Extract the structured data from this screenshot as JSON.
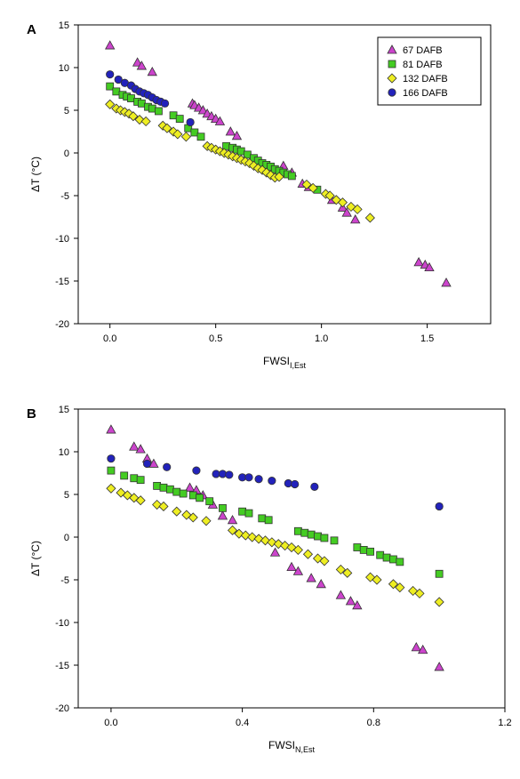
{
  "chart_data": [
    {
      "panel": "A",
      "type": "scatter",
      "xlabel": {
        "base": "FWSI",
        "sub": "I,Est"
      },
      "ylabel": "ΔT (°C)",
      "xlim": [
        -0.15,
        1.8
      ],
      "ylim": [
        -20,
        15
      ],
      "xticks": [
        "0.0",
        "0.5",
        "1.0",
        "1.5"
      ],
      "xtick_values": [
        0,
        0.5,
        1.0,
        1.5
      ],
      "yticks": [
        "15",
        "10",
        "5",
        "0",
        "-5",
        "-10",
        "-15",
        "-20"
      ],
      "ytick_values": [
        15,
        10,
        5,
        0,
        -5,
        -10,
        -15,
        -20
      ],
      "legend_position": "top-right",
      "series": [
        {
          "name": "67 DAFB",
          "marker": "triangle",
          "color": "#cc44cc",
          "points": [
            [
              0.0,
              12.6
            ],
            [
              0.13,
              10.6
            ],
            [
              0.15,
              10.2
            ],
            [
              0.2,
              9.5
            ],
            [
              0.39,
              5.8
            ],
            [
              0.4,
              5.6
            ],
            [
              0.42,
              5.3
            ],
            [
              0.44,
              5.0
            ],
            [
              0.46,
              4.6
            ],
            [
              0.48,
              4.3
            ],
            [
              0.5,
              4.0
            ],
            [
              0.52,
              3.7
            ],
            [
              0.57,
              2.5
            ],
            [
              0.6,
              2.0
            ],
            [
              0.82,
              -1.5
            ],
            [
              0.86,
              -2.3
            ],
            [
              0.91,
              -3.6
            ],
            [
              0.94,
              -4.0
            ],
            [
              1.05,
              -5.5
            ],
            [
              1.1,
              -6.4
            ],
            [
              1.12,
              -7.0
            ],
            [
              1.16,
              -7.8
            ],
            [
              1.46,
              -12.8
            ],
            [
              1.49,
              -13.1
            ],
            [
              1.51,
              -13.4
            ],
            [
              1.59,
              -15.2
            ]
          ]
        },
        {
          "name": "81 DAFB",
          "marker": "square",
          "color": "#44cc22",
          "points": [
            [
              0.0,
              7.8
            ],
            [
              0.03,
              7.2
            ],
            [
              0.06,
              6.8
            ],
            [
              0.08,
              6.6
            ],
            [
              0.1,
              6.4
            ],
            [
              0.13,
              6.0
            ],
            [
              0.15,
              5.8
            ],
            [
              0.18,
              5.4
            ],
            [
              0.2,
              5.2
            ],
            [
              0.23,
              4.9
            ],
            [
              0.3,
              4.4
            ],
            [
              0.33,
              4.0
            ],
            [
              0.37,
              2.9
            ],
            [
              0.4,
              2.4
            ],
            [
              0.43,
              1.9
            ],
            [
              0.55,
              0.8
            ],
            [
              0.58,
              0.6
            ],
            [
              0.6,
              0.4
            ],
            [
              0.62,
              0.2
            ],
            [
              0.65,
              -0.2
            ],
            [
              0.68,
              -0.6
            ],
            [
              0.7,
              -0.9
            ],
            [
              0.72,
              -1.2
            ],
            [
              0.74,
              -1.4
            ],
            [
              0.76,
              -1.6
            ],
            [
              0.78,
              -1.9
            ],
            [
              0.8,
              -2.1
            ],
            [
              0.82,
              -2.3
            ],
            [
              0.84,
              -2.5
            ],
            [
              0.86,
              -2.7
            ],
            [
              0.98,
              -4.3
            ]
          ]
        },
        {
          "name": "132 DAFB",
          "marker": "diamond",
          "color": "#eeee22",
          "points": [
            [
              0.0,
              5.7
            ],
            [
              0.03,
              5.2
            ],
            [
              0.05,
              5.0
            ],
            [
              0.07,
              4.8
            ],
            [
              0.09,
              4.6
            ],
            [
              0.11,
              4.3
            ],
            [
              0.14,
              3.9
            ],
            [
              0.17,
              3.7
            ],
            [
              0.25,
              3.2
            ],
            [
              0.27,
              2.9
            ],
            [
              0.3,
              2.5
            ],
            [
              0.32,
              2.2
            ],
            [
              0.36,
              1.9
            ],
            [
              0.46,
              0.8
            ],
            [
              0.48,
              0.6
            ],
            [
              0.5,
              0.4
            ],
            [
              0.52,
              0.2
            ],
            [
              0.54,
              0.0
            ],
            [
              0.56,
              -0.2
            ],
            [
              0.58,
              -0.4
            ],
            [
              0.6,
              -0.6
            ],
            [
              0.62,
              -0.8
            ],
            [
              0.64,
              -1.0
            ],
            [
              0.66,
              -1.2
            ],
            [
              0.68,
              -1.5
            ],
            [
              0.7,
              -1.8
            ],
            [
              0.72,
              -2.0
            ],
            [
              0.74,
              -2.3
            ],
            [
              0.76,
              -2.6
            ],
            [
              0.78,
              -2.9
            ],
            [
              0.8,
              -2.8
            ],
            [
              0.93,
              -3.7
            ],
            [
              0.96,
              -4.1
            ],
            [
              1.02,
              -4.8
            ],
            [
              1.04,
              -5.0
            ],
            [
              1.07,
              -5.5
            ],
            [
              1.1,
              -5.8
            ],
            [
              1.14,
              -6.3
            ],
            [
              1.17,
              -6.6
            ],
            [
              1.23,
              -7.6
            ]
          ]
        },
        {
          "name": "166 DAFB",
          "marker": "circle",
          "color": "#2222bb",
          "points": [
            [
              0.0,
              9.2
            ],
            [
              0.04,
              8.6
            ],
            [
              0.07,
              8.2
            ],
            [
              0.1,
              7.9
            ],
            [
              0.12,
              7.5
            ],
            [
              0.14,
              7.2
            ],
            [
              0.16,
              7.0
            ],
            [
              0.18,
              6.8
            ],
            [
              0.2,
              6.5
            ],
            [
              0.22,
              6.2
            ],
            [
              0.24,
              6.0
            ],
            [
              0.26,
              5.8
            ],
            [
              0.38,
              3.6
            ]
          ]
        }
      ]
    },
    {
      "panel": "B",
      "type": "scatter",
      "xlabel": {
        "base": "FWSI",
        "sub": "N,Est"
      },
      "ylabel": "ΔT (°C)",
      "xlim": [
        -0.1,
        1.2
      ],
      "ylim": [
        -20,
        15
      ],
      "xticks": [
        "0.0",
        "0.4",
        "0.8",
        "1.2"
      ],
      "xtick_values": [
        0,
        0.4,
        0.8,
        1.2
      ],
      "yticks": [
        "15",
        "10",
        "5",
        "0",
        "-5",
        "-10",
        "-15",
        "-20"
      ],
      "ytick_values": [
        15,
        10,
        5,
        0,
        -5,
        -10,
        -15,
        -20
      ],
      "series": [
        {
          "name": "67 DAFB",
          "marker": "triangle",
          "color": "#cc44cc",
          "points": [
            [
              0.0,
              12.6
            ],
            [
              0.07,
              10.6
            ],
            [
              0.09,
              10.3
            ],
            [
              0.11,
              9.2
            ],
            [
              0.13,
              8.6
            ],
            [
              0.24,
              5.8
            ],
            [
              0.26,
              5.5
            ],
            [
              0.28,
              4.9
            ],
            [
              0.31,
              3.8
            ],
            [
              0.34,
              2.5
            ],
            [
              0.37,
              2.0
            ],
            [
              0.5,
              -1.8
            ],
            [
              0.55,
              -3.5
            ],
            [
              0.57,
              -4.0
            ],
            [
              0.61,
              -4.8
            ],
            [
              0.64,
              -5.5
            ],
            [
              0.7,
              -6.8
            ],
            [
              0.73,
              -7.5
            ],
            [
              0.75,
              -8.0
            ],
            [
              0.93,
              -12.9
            ],
            [
              0.95,
              -13.2
            ],
            [
              1.0,
              -15.2
            ]
          ]
        },
        {
          "name": "81 DAFB",
          "marker": "square",
          "color": "#44cc22",
          "points": [
            [
              0.0,
              7.8
            ],
            [
              0.04,
              7.2
            ],
            [
              0.07,
              6.9
            ],
            [
              0.09,
              6.7
            ],
            [
              0.14,
              6.0
            ],
            [
              0.16,
              5.8
            ],
            [
              0.18,
              5.6
            ],
            [
              0.2,
              5.3
            ],
            [
              0.22,
              5.1
            ],
            [
              0.25,
              4.9
            ],
            [
              0.27,
              4.6
            ],
            [
              0.3,
              4.2
            ],
            [
              0.34,
              3.4
            ],
            [
              0.4,
              3.0
            ],
            [
              0.42,
              2.8
            ],
            [
              0.46,
              2.2
            ],
            [
              0.48,
              2.0
            ],
            [
              0.57,
              0.7
            ],
            [
              0.59,
              0.5
            ],
            [
              0.61,
              0.3
            ],
            [
              0.63,
              0.1
            ],
            [
              0.65,
              -0.1
            ],
            [
              0.68,
              -0.4
            ],
            [
              0.75,
              -1.2
            ],
            [
              0.77,
              -1.5
            ],
            [
              0.79,
              -1.7
            ],
            [
              0.82,
              -2.1
            ],
            [
              0.84,
              -2.4
            ],
            [
              0.86,
              -2.6
            ],
            [
              0.88,
              -2.9
            ],
            [
              1.0,
              -4.3
            ]
          ]
        },
        {
          "name": "132 DAFB",
          "marker": "diamond",
          "color": "#eeee22",
          "points": [
            [
              0.0,
              5.7
            ],
            [
              0.03,
              5.2
            ],
            [
              0.05,
              4.9
            ],
            [
              0.07,
              4.6
            ],
            [
              0.09,
              4.3
            ],
            [
              0.14,
              3.8
            ],
            [
              0.16,
              3.6
            ],
            [
              0.2,
              3.0
            ],
            [
              0.23,
              2.6
            ],
            [
              0.25,
              2.3
            ],
            [
              0.29,
              1.9
            ],
            [
              0.37,
              0.8
            ],
            [
              0.39,
              0.4
            ],
            [
              0.41,
              0.2
            ],
            [
              0.43,
              0.0
            ],
            [
              0.45,
              -0.2
            ],
            [
              0.47,
              -0.4
            ],
            [
              0.49,
              -0.6
            ],
            [
              0.51,
              -0.8
            ],
            [
              0.53,
              -1.0
            ],
            [
              0.55,
              -1.2
            ],
            [
              0.57,
              -1.5
            ],
            [
              0.6,
              -2.0
            ],
            [
              0.63,
              -2.5
            ],
            [
              0.65,
              -2.8
            ],
            [
              0.7,
              -3.8
            ],
            [
              0.72,
              -4.2
            ],
            [
              0.79,
              -4.7
            ],
            [
              0.81,
              -5.0
            ],
            [
              0.86,
              -5.5
            ],
            [
              0.88,
              -5.9
            ],
            [
              0.92,
              -6.3
            ],
            [
              0.94,
              -6.6
            ],
            [
              1.0,
              -7.6
            ]
          ]
        },
        {
          "name": "166 DAFB",
          "marker": "circle",
          "color": "#2222bb",
          "points": [
            [
              0.0,
              9.2
            ],
            [
              0.11,
              8.6
            ],
            [
              0.17,
              8.2
            ],
            [
              0.26,
              7.8
            ],
            [
              0.32,
              7.4
            ],
            [
              0.34,
              7.4
            ],
            [
              0.36,
              7.3
            ],
            [
              0.4,
              7.0
            ],
            [
              0.42,
              7.0
            ],
            [
              0.45,
              6.8
            ],
            [
              0.49,
              6.6
            ],
            [
              0.54,
              6.3
            ],
            [
              0.56,
              6.2
            ],
            [
              0.62,
              5.9
            ],
            [
              1.0,
              3.6
            ]
          ]
        }
      ]
    }
  ]
}
